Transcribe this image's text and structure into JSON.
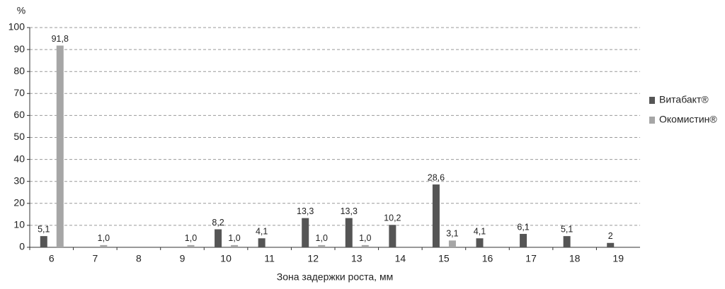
{
  "chart_data": {
    "type": "bar",
    "y_label": "%",
    "x_label": "Зона задержки роста, мм",
    "categories": [
      "6",
      "7",
      "8",
      "9",
      "10",
      "11",
      "12",
      "13",
      "14",
      "15",
      "16",
      "17",
      "18",
      "19"
    ],
    "series": [
      {
        "name": "Витабакт®",
        "color": "#555555",
        "values": [
          5.1,
          null,
          null,
          null,
          8.2,
          4.1,
          13.3,
          13.3,
          10.2,
          28.6,
          4.1,
          6.1,
          5.1,
          2
        ],
        "value_labels": [
          "5,1",
          null,
          null,
          null,
          "8,2",
          "4,1",
          "13,3",
          "13,3",
          "10,2",
          "28,6",
          "4,1",
          "6,1",
          "5,1",
          "2"
        ]
      },
      {
        "name": "Окомистин®",
        "color": "#a6a6a6",
        "values": [
          91.8,
          1.0,
          null,
          1.0,
          1.0,
          null,
          1.0,
          1.0,
          null,
          3.1,
          null,
          null,
          null,
          null
        ],
        "value_labels": [
          "91,8",
          "1,0",
          null,
          "1,0",
          "1,0",
          null,
          "1,0",
          "1,0",
          null,
          "3,1",
          null,
          null,
          null,
          null
        ]
      }
    ],
    "ylim": [
      0,
      100
    ],
    "yticks": [
      0,
      10,
      20,
      30,
      40,
      50,
      60,
      70,
      80,
      90,
      100
    ],
    "grid": true,
    "legend": "right"
  }
}
